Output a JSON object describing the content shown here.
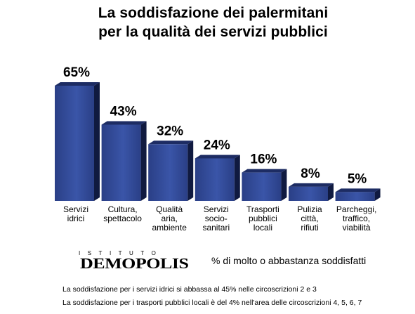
{
  "title_lines": [
    "La soddisfazione dei palermitani",
    "per la qualità dei servizi pubblici"
  ],
  "chart_data": {
    "type": "bar",
    "title": "La soddisfazione dei palermitani per la qualità dei servizi pubblici",
    "categories": [
      "Servizi idrici",
      "Cultura, spettacolo",
      "Qualità aria, ambiente",
      "Servizi socio-sanitari",
      "Trasporti pubblici locali",
      "Pulizia città, rifiuti",
      "Parcheggi, traffico, viabilità"
    ],
    "category_label_lines": [
      [
        "Servizi",
        "idrici"
      ],
      [
        "Cultura,",
        "spettacolo"
      ],
      [
        "Qualità",
        "aria,",
        "ambiente"
      ],
      [
        "Servizi",
        "socio-",
        "sanitari"
      ],
      [
        "Trasporti",
        "pubblici",
        "locali"
      ],
      [
        "Pulizia",
        "città,",
        "rifiuti"
      ],
      [
        "Parcheggi,",
        "traffico,",
        "viabilità"
      ]
    ],
    "values": [
      65,
      43,
      32,
      24,
      16,
      8,
      5
    ],
    "value_labels": [
      "65%",
      "43%",
      "32%",
      "24%",
      "16%",
      "8%",
      "5%"
    ],
    "unit": "%",
    "ylim": [
      0,
      65
    ],
    "grid": false,
    "legend": "% di molto o abbastanza soddisfatti",
    "colors": {
      "bar_front": "#2a3f86",
      "bar_front_light": "#3a55a8",
      "bar_top": "#1d2c63",
      "bar_side": "#101a40"
    }
  },
  "logo": {
    "small_text": "ISTITUTO",
    "big_text": "DEMOPOLIS"
  },
  "notes": [
    "La soddisfazione per i servizi idrici si abbassa al 45% nelle circoscrizioni 2 e 3",
    "La soddisfazione per i trasporti pubblici locali è del 4% nell'area delle circoscrizioni 4, 5, 6, 7"
  ]
}
